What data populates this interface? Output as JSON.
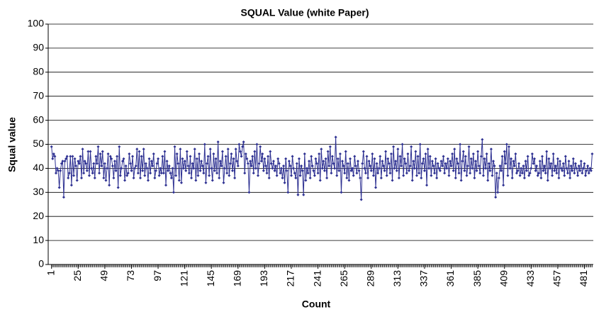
{
  "chart_data": {
    "type": "line",
    "title": "SQUAL Value (white Paper)",
    "x_label": "Count",
    "y_label": "Squal value",
    "x": [
      1,
      2,
      3,
      4,
      5,
      6,
      7,
      8,
      9,
      10,
      11,
      12,
      13,
      14,
      15,
      16,
      17,
      18,
      19,
      20,
      21,
      22,
      23,
      24,
      25,
      26,
      27,
      28,
      29,
      30,
      31,
      32,
      33,
      34,
      35,
      36,
      37,
      38,
      39,
      40,
      41,
      42,
      43,
      44,
      45,
      46,
      47,
      48,
      49,
      50,
      51,
      52,
      53,
      54,
      55,
      56,
      57,
      58,
      59,
      60,
      61,
      62,
      63,
      64,
      65,
      66,
      67,
      68,
      69,
      70,
      71,
      72,
      73,
      74,
      75,
      76,
      77,
      78,
      79,
      80,
      81,
      82,
      83,
      84,
      85,
      86,
      87,
      88,
      89,
      90,
      91,
      92,
      93,
      94,
      95,
      96,
      97,
      98,
      99,
      100,
      101,
      102,
      103,
      104,
      105,
      106,
      107,
      108,
      109,
      110,
      111,
      112,
      113,
      114,
      115,
      116,
      117,
      118,
      119,
      120,
      121,
      122,
      123,
      124,
      125,
      126,
      127,
      128,
      129,
      130,
      131,
      132,
      133,
      134,
      135,
      136,
      137,
      138,
      139,
      140,
      141,
      142,
      143,
      144,
      145,
      146,
      147,
      148,
      149,
      150,
      151,
      152,
      153,
      154,
      155,
      156,
      157,
      158,
      159,
      160,
      161,
      162,
      163,
      164,
      165,
      166,
      167,
      168,
      169,
      170,
      171,
      172,
      173,
      174,
      175,
      176,
      177,
      178,
      179,
      180,
      181,
      182,
      183,
      184,
      185,
      186,
      187,
      188,
      189,
      190,
      191,
      192,
      193,
      194,
      195,
      196,
      197,
      198,
      199,
      200,
      201,
      202,
      203,
      204,
      205,
      206,
      207,
      208,
      209,
      210,
      211,
      212,
      213,
      214,
      215,
      216,
      217,
      218,
      219,
      220,
      221,
      222,
      223,
      224,
      225,
      226,
      227,
      228,
      229,
      230,
      231,
      232,
      233,
      234,
      235,
      236,
      237,
      238,
      239,
      240,
      241,
      242,
      243,
      244,
      245,
      246,
      247,
      248,
      249,
      250,
      251,
      252,
      253,
      254,
      255,
      256,
      257,
      258,
      259,
      260,
      261,
      262,
      263,
      264,
      265,
      266,
      267,
      268,
      269,
      270,
      271,
      272,
      273,
      274,
      275,
      276,
      277,
      278,
      279,
      280,
      281,
      282,
      283,
      284,
      285,
      286,
      287,
      288,
      289,
      290,
      291,
      292,
      293,
      294,
      295,
      296,
      297,
      298,
      299,
      300,
      301,
      302,
      303,
      304,
      305,
      306,
      307,
      308,
      309,
      310,
      311,
      312,
      313,
      314,
      315,
      316,
      317,
      318,
      319,
      320,
      321,
      322,
      323,
      324,
      325,
      326,
      327,
      328,
      329,
      330,
      331,
      332,
      333,
      334,
      335,
      336,
      337,
      338,
      339,
      340,
      341,
      342,
      343,
      344,
      345,
      346,
      347,
      348,
      349,
      350,
      351,
      352,
      353,
      354,
      355,
      356,
      357,
      358,
      359,
      360,
      361,
      362,
      363,
      364,
      365,
      366,
      367,
      368,
      369,
      370,
      371,
      372,
      373,
      374,
      375,
      376,
      377,
      378,
      379,
      380,
      381,
      382,
      383,
      384,
      385,
      386,
      387,
      388,
      389,
      390,
      391,
      392,
      393,
      394,
      395,
      396,
      397,
      398,
      399,
      400,
      401,
      402,
      403,
      404,
      405,
      406,
      407,
      408,
      409,
      410,
      411,
      412,
      413,
      414,
      415,
      416,
      417,
      418,
      419,
      420,
      421,
      422,
      423,
      424,
      425,
      426,
      427,
      428,
      429,
      430,
      431,
      432,
      433,
      434,
      435,
      436,
      437,
      438,
      439,
      440,
      441,
      442,
      443,
      444,
      445,
      446,
      447,
      448,
      449,
      450,
      451,
      452,
      453,
      454,
      455,
      456,
      457,
      458,
      459,
      460,
      461,
      462,
      463,
      464,
      465,
      466,
      467,
      468,
      469,
      470,
      471,
      472,
      473,
      474,
      475,
      476,
      477,
      478,
      479,
      480,
      481,
      482,
      483,
      484,
      485,
      486,
      487,
      488
    ],
    "series": [
      {
        "name": "SQUAL",
        "color": "#2e3192",
        "values": [
          49,
          44,
          46,
          45,
          38,
          40,
          39,
          32,
          39,
          42,
          43,
          28,
          43,
          44,
          45,
          36,
          38,
          45,
          33,
          45,
          37,
          44,
          41,
          35,
          43,
          42,
          45,
          36,
          48,
          38,
          43,
          42,
          39,
          47,
          37,
          47,
          40,
          38,
          42,
          36,
          45,
          42,
          49,
          38,
          46,
          41,
          47,
          36,
          42,
          35,
          40,
          46,
          33,
          45,
          44,
          41,
          36,
          43,
          39,
          45,
          32,
          49,
          37,
          40,
          43,
          44,
          35,
          41,
          37,
          38,
          46,
          42,
          39,
          45,
          36,
          40,
          41,
          48,
          38,
          47,
          36,
          45,
          39,
          48,
          37,
          42,
          40,
          35,
          44,
          38,
          43,
          41,
          46,
          36,
          39,
          42,
          44,
          37,
          40,
          38,
          45,
          38,
          47,
          33,
          43,
          39,
          41,
          38,
          36,
          40,
          30,
          49,
          37,
          46,
          42,
          35,
          48,
          34,
          44,
          40,
          43,
          39,
          47,
          41,
          38,
          45,
          36,
          42,
          40,
          48,
          35,
          44,
          37,
          46,
          39,
          43,
          41,
          38,
          50,
          34,
          42,
          45,
          37,
          48,
          40,
          35,
          46,
          39,
          44,
          38,
          51,
          36,
          43,
          41,
          47,
          34,
          40,
          45,
          38,
          48,
          37,
          42,
          46,
          39,
          44,
          36,
          48,
          43,
          41,
          50,
          47,
          45,
          49,
          51,
          38,
          46,
          44,
          42,
          30,
          43,
          41,
          45,
          38,
          47,
          40,
          50,
          37,
          42,
          49,
          43,
          46,
          39,
          44,
          41,
          38,
          45,
          36,
          47,
          42,
          40,
          43,
          39,
          41,
          37,
          44,
          42,
          38,
          40,
          36,
          41,
          34,
          44,
          39,
          30,
          43,
          41,
          37,
          45,
          40,
          38,
          36,
          42,
          29,
          44,
          37,
          41,
          39,
          29,
          46,
          35,
          40,
          38,
          43,
          36,
          45,
          41,
          39,
          37,
          44,
          42,
          38,
          46,
          35,
          48,
          40,
          43,
          39,
          44,
          36,
          47,
          41,
          49,
          38,
          45,
          42,
          40,
          53,
          37,
          44,
          39,
          46,
          30,
          43,
          41,
          38,
          47,
          36,
          42,
          35,
          44,
          39,
          40,
          37,
          45,
          41,
          38,
          43,
          39,
          36,
          27,
          42,
          47,
          40,
          38,
          45,
          36,
          43,
          41,
          39,
          46,
          37,
          44,
          32,
          42,
          38,
          40,
          45,
          36,
          43,
          41,
          39,
          47,
          37,
          44,
          42,
          38,
          46,
          35,
          49,
          40,
          43,
          39,
          48,
          36,
          45,
          41,
          50,
          37,
          44,
          42,
          38,
          46,
          39,
          41,
          49,
          35,
          43,
          40,
          47,
          37,
          45,
          38,
          50,
          36,
          42,
          44,
          39,
          46,
          33,
          48,
          40,
          45,
          37,
          43,
          41,
          38,
          44,
          36,
          42,
          40,
          39,
          43,
          41,
          45,
          38,
          42,
          40,
          44,
          37,
          43,
          41,
          46,
          39,
          48,
          36,
          44,
          42,
          38,
          50,
          35,
          43,
          47,
          39,
          45,
          37,
          41,
          49,
          38,
          44,
          40,
          46,
          36,
          43,
          39,
          47,
          41,
          38,
          45,
          52,
          37,
          44,
          40,
          46,
          35,
          42,
          39,
          48,
          37,
          43,
          41,
          28,
          38,
          30,
          36,
          41,
          39,
          45,
          33,
          47,
          42,
          50,
          37,
          49,
          40,
          44,
          36,
          43,
          41,
          46,
          38,
          39,
          42,
          37,
          40,
          38,
          41,
          36,
          43,
          39,
          45,
          37,
          38,
          40,
          46,
          42,
          44,
          39,
          41,
          37,
          38,
          43,
          36,
          45,
          39,
          41,
          38,
          47,
          35,
          44,
          40,
          42,
          37,
          46,
          39,
          41,
          38,
          44,
          36,
          43,
          40,
          39,
          42,
          37,
          45,
          40,
          38,
          43,
          36,
          41,
          39,
          44,
          38,
          42,
          40,
          37,
          41,
          39,
          43,
          38,
          40,
          42,
          37,
          39,
          41,
          38,
          40,
          39,
          46
        ]
      }
    ],
    "xlim": [
      -2,
      489
    ],
    "xticks": [
      1,
      25,
      49,
      73,
      97,
      121,
      145,
      169,
      193,
      217,
      241,
      265,
      289,
      313,
      337,
      361,
      385,
      409,
      433,
      457,
      481
    ],
    "ylim": [
      0,
      100
    ],
    "yticks": [
      0,
      10,
      20,
      30,
      40,
      50,
      60,
      70,
      80,
      90,
      100
    ],
    "grid": true
  }
}
